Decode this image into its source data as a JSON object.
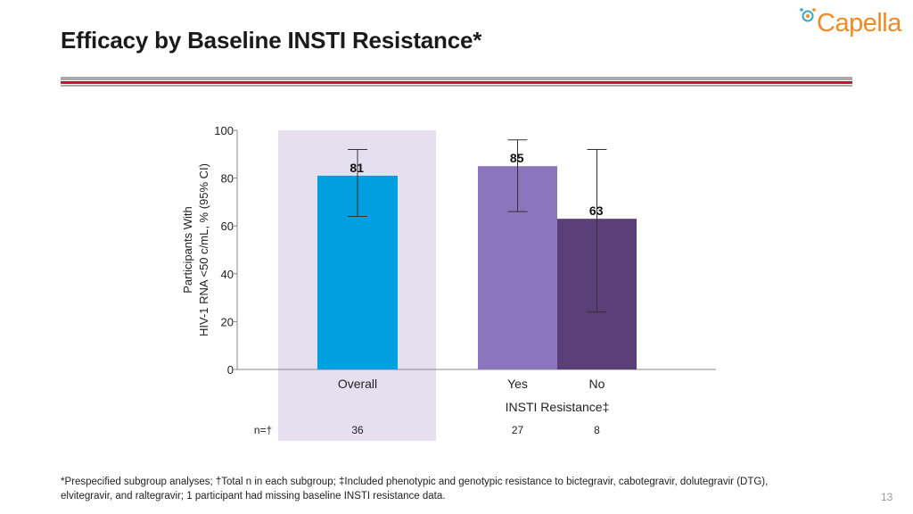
{
  "slide": {
    "title": "Efficacy by Baseline INSTI Resistance*",
    "logo_text": "Capella",
    "page_number": "13",
    "footnote_line1": "*Prespecified subgroup analyses; †Total n in each subgroup; ‡Included phenotypic and genotypic resistance to bictegravir, cabotegravir, dolutegravir (DTG),",
    "footnote_line2": "elvitegravir, and raltegravir; 1 participant had missing baseline INSTI resistance data."
  },
  "colors": {
    "accent_red": "#c8102e",
    "rule_gray": "#a9a9a9",
    "logo_orange": "#f08a24",
    "logo_teal": "#3aa9c9",
    "highlight_band": "#e6dff0",
    "overall_bar": "#009fdf",
    "yes_bar": "#8b76bd",
    "no_bar": "#5a3f78"
  },
  "chart_data": {
    "type": "bar",
    "ylabel_line1": "Participants With",
    "ylabel_line2": "HIV-1 RNA <50 c/mL, % (95% CI)",
    "ylim": [
      0,
      100
    ],
    "yticks": [
      0,
      20,
      40,
      60,
      80,
      100
    ],
    "group_label": "INSTI Resistance‡",
    "n_prefix": "n=†",
    "categories": [
      "Overall",
      "Yes",
      "No"
    ],
    "values": [
      81,
      85,
      63
    ],
    "ci_low": [
      64,
      66,
      24
    ],
    "ci_high": [
      92,
      96,
      92
    ],
    "n": [
      "36",
      "27",
      "8"
    ],
    "value_labels": [
      "81",
      "85",
      "63"
    ],
    "bar_colors": [
      "#009fdf",
      "#8b76bd",
      "#5a3f78"
    ],
    "highlighted_category": "Overall",
    "grid": false
  }
}
